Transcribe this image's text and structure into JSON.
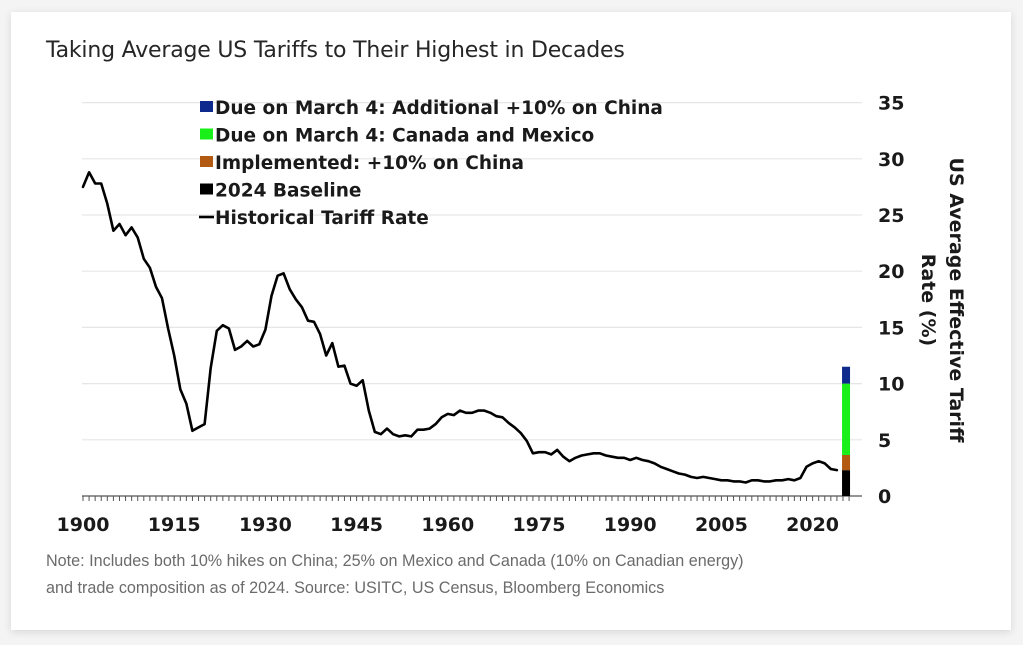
{
  "chart_data": {
    "type": "line",
    "title": "Taking Average US Tariffs to Their Highest in Decades",
    "ylabel": "US Average Effective Tariff Rate (%)",
    "ylabel_lines": [
      "US Average Effective Tariff",
      "Rate (%)"
    ],
    "xlabel": "",
    "ylim": [
      0,
      35
    ],
    "xlim": [
      1900,
      2026
    ],
    "yticks": [
      0,
      5,
      10,
      15,
      20,
      25,
      30,
      35
    ],
    "xticks": [
      1900,
      1915,
      1930,
      1945,
      1960,
      1975,
      1990,
      2005,
      2020
    ],
    "y_axis_side": "right",
    "grid": true,
    "legend_position": "top-center",
    "legend": [
      {
        "label": "Due on March 4: Additional +10% on China",
        "kind": "box",
        "color": "#0d2a8c"
      },
      {
        "label": "Due on March 4: Canada and Mexico",
        "kind": "box",
        "color": "#19f019"
      },
      {
        "label": "Implemented: +10% on China",
        "kind": "box",
        "color": "#b35a12"
      },
      {
        "label": "2024 Baseline",
        "kind": "box",
        "color": "#000000"
      },
      {
        "label": "Historical Tariff Rate",
        "kind": "line",
        "color": "#000000"
      }
    ],
    "series": [
      {
        "name": "Historical Tariff Rate",
        "color": "#000000",
        "x": [
          1900,
          1901,
          1902,
          1903,
          1904,
          1905,
          1906,
          1907,
          1908,
          1909,
          1910,
          1911,
          1912,
          1913,
          1914,
          1915,
          1916,
          1917,
          1918,
          1919,
          1920,
          1921,
          1922,
          1923,
          1924,
          1925,
          1926,
          1927,
          1928,
          1929,
          1930,
          1931,
          1932,
          1933,
          1934,
          1935,
          1936,
          1937,
          1938,
          1939,
          1940,
          1941,
          1942,
          1943,
          1944,
          1945,
          1946,
          1947,
          1948,
          1949,
          1950,
          1951,
          1952,
          1953,
          1954,
          1955,
          1956,
          1957,
          1958,
          1959,
          1960,
          1961,
          1962,
          1963,
          1964,
          1965,
          1966,
          1967,
          1968,
          1969,
          1970,
          1971,
          1972,
          1973,
          1974,
          1975,
          1976,
          1977,
          1978,
          1979,
          1980,
          1981,
          1982,
          1983,
          1984,
          1985,
          1986,
          1987,
          1988,
          1989,
          1990,
          1991,
          1992,
          1993,
          1994,
          1995,
          1996,
          1997,
          1998,
          1999,
          2000,
          2001,
          2002,
          2003,
          2004,
          2005,
          2006,
          2007,
          2008,
          2009,
          2010,
          2011,
          2012,
          2013,
          2014,
          2015,
          2016,
          2017,
          2018,
          2019,
          2020,
          2021,
          2022,
          2023,
          2024
        ],
        "values": [
          27.5,
          28.8,
          27.8,
          27.8,
          26.0,
          23.6,
          24.2,
          23.2,
          23.9,
          23.0,
          21.1,
          20.3,
          18.6,
          17.6,
          14.9,
          12.5,
          9.5,
          8.2,
          5.8,
          6.1,
          6.4,
          11.4,
          14.7,
          15.2,
          14.9,
          13.0,
          13.3,
          13.8,
          13.3,
          13.5,
          14.8,
          17.8,
          19.6,
          19.8,
          18.4,
          17.5,
          16.8,
          15.6,
          15.5,
          14.4,
          12.5,
          13.6,
          11.5,
          11.6,
          10.0,
          9.8,
          10.3,
          7.6,
          5.7,
          5.5,
          6.0,
          5.5,
          5.3,
          5.4,
          5.3,
          5.9,
          5.9,
          6.0,
          6.4,
          7.0,
          7.3,
          7.2,
          7.6,
          7.4,
          7.4,
          7.6,
          7.6,
          7.4,
          7.1,
          7.0,
          6.5,
          6.1,
          5.6,
          4.9,
          3.8,
          3.9,
          3.9,
          3.7,
          4.1,
          3.5,
          3.1,
          3.4,
          3.6,
          3.7,
          3.8,
          3.8,
          3.6,
          3.5,
          3.4,
          3.4,
          3.2,
          3.4,
          3.2,
          3.1,
          2.9,
          2.6,
          2.4,
          2.2,
          2.0,
          1.9,
          1.7,
          1.6,
          1.7,
          1.6,
          1.5,
          1.4,
          1.4,
          1.3,
          1.3,
          1.2,
          1.4,
          1.4,
          1.3,
          1.3,
          1.4,
          1.4,
          1.5,
          1.4,
          1.6,
          2.6,
          2.9,
          3.1,
          2.9,
          2.4,
          2.3
        ]
      }
    ],
    "stacked_bar": {
      "x": 2025.5,
      "segments": [
        {
          "name": "2024 Baseline",
          "value": 2.3,
          "color": "#000000"
        },
        {
          "name": "Implemented: +10% on China",
          "value": 1.35,
          "color": "#b35a12"
        },
        {
          "name": "Due on March 4: Canada and Mexico",
          "value": 6.35,
          "color": "#19f019"
        },
        {
          "name": "Due on March 4: Additional +10% on China",
          "value": 1.5,
          "color": "#0d2a8c"
        }
      ]
    },
    "note_lines": [
      "Note: Includes both 10% hikes on China; 25% on Mexico and Canada (10% on Canadian energy)",
      "and trade composition as of 2024. Source: USITC, US Census, Bloomberg Economics"
    ]
  },
  "colors": {
    "grid": "#e6e6e6",
    "axis": "#555555",
    "text": "#1a1a1a"
  }
}
